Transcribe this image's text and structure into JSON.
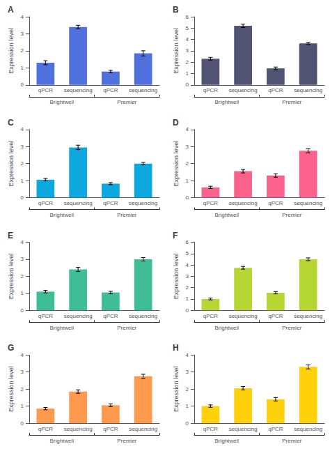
{
  "chart_data": [
    {
      "type": "bar",
      "title": "A",
      "ylabel": "Expression level",
      "categories": [
        "qPCR",
        "sequencing",
        "qPCR",
        "sequencing"
      ],
      "groups": [
        "Brightwell",
        "Brightwell",
        "Premier",
        "Premier"
      ],
      "values": [
        1.3,
        3.4,
        0.78,
        1.85
      ],
      "errors": [
        0.12,
        0.1,
        0.07,
        0.15
      ],
      "ylim": [
        0,
        4
      ],
      "yticks": [
        0,
        1,
        2,
        3,
        4
      ],
      "grid": false
    },
    {
      "type": "bar",
      "title": "B",
      "ylabel": "Expression level",
      "categories": [
        "qPCR",
        "sequencing",
        "qPCR",
        "sequencing"
      ],
      "groups": [
        "Brightwell",
        "Brightwell",
        "Premier",
        "Premier"
      ],
      "values": [
        2.3,
        5.2,
        1.45,
        3.65
      ],
      "errors": [
        0.12,
        0.15,
        0.12,
        0.1
      ],
      "ylim": [
        0,
        6
      ],
      "yticks": [
        0,
        1,
        2,
        3,
        4,
        5,
        6
      ],
      "grid": false
    },
    {
      "type": "bar",
      "title": "C",
      "ylabel": "Expression level",
      "categories": [
        "qPCR",
        "sequencing",
        "qPCR",
        "sequencing"
      ],
      "groups": [
        "Brightwell",
        "Brightwell",
        "Premier",
        "Premier"
      ],
      "values": [
        1.05,
        2.95,
        0.82,
        2.0
      ],
      "errors": [
        0.07,
        0.13,
        0.06,
        0.07
      ],
      "ylim": [
        0,
        4
      ],
      "yticks": [
        0,
        1,
        2,
        3,
        4
      ],
      "grid": false
    },
    {
      "type": "bar",
      "title": "D",
      "ylabel": "Expression level",
      "categories": [
        "qPCR",
        "sequencing",
        "qPCR",
        "sequencing"
      ],
      "groups": [
        "Brightwell",
        "Brightwell",
        "Premier",
        "Premier"
      ],
      "values": [
        0.6,
        1.55,
        1.3,
        2.75
      ],
      "errors": [
        0.07,
        0.1,
        0.1,
        0.12
      ],
      "ylim": [
        0,
        4
      ],
      "yticks": [
        0,
        1,
        2,
        3,
        4
      ],
      "grid": false
    },
    {
      "type": "bar",
      "title": "E",
      "ylabel": "Expression level",
      "categories": [
        "qPCR",
        "sequencing",
        "qPCR",
        "sequencing"
      ],
      "groups": [
        "Brightwell",
        "Brightwell",
        "Premier",
        "Premier"
      ],
      "values": [
        1.1,
        2.4,
        1.05,
        3.0
      ],
      "errors": [
        0.08,
        0.12,
        0.07,
        0.1
      ],
      "ylim": [
        0,
        4
      ],
      "yticks": [
        0,
        1,
        2,
        3,
        4
      ],
      "grid": false
    },
    {
      "type": "bar",
      "title": "F",
      "ylabel": "Expression level",
      "categories": [
        "qPCR",
        "sequencing",
        "qPCR",
        "sequencing"
      ],
      "groups": [
        "Brightwell",
        "Brightwell",
        "Premier",
        "Premier"
      ],
      "values": [
        1.0,
        3.75,
        1.55,
        4.5
      ],
      "errors": [
        0.08,
        0.12,
        0.1,
        0.12
      ],
      "ylim": [
        0,
        6
      ],
      "yticks": [
        0,
        1,
        2,
        3,
        4,
        5,
        6
      ],
      "grid": false
    },
    {
      "type": "bar",
      "title": "G",
      "ylabel": "Expression level",
      "categories": [
        "qPCR",
        "sequencing",
        "qPCR",
        "sequencing"
      ],
      "groups": [
        "Brightwell",
        "Brightwell",
        "Premier",
        "Premier"
      ],
      "values": [
        0.85,
        1.85,
        1.05,
        2.75
      ],
      "errors": [
        0.07,
        0.1,
        0.08,
        0.12
      ],
      "ylim": [
        0,
        4
      ],
      "yticks": [
        0,
        1,
        2,
        3,
        4
      ],
      "grid": false
    },
    {
      "type": "bar",
      "title": "H",
      "ylabel": "Expression level",
      "categories": [
        "qPCR",
        "sequencing",
        "qPCR",
        "sequencing"
      ],
      "groups": [
        "Brightwell",
        "Brightwell",
        "Premier",
        "Premier"
      ],
      "values": [
        1.0,
        2.05,
        1.4,
        3.3
      ],
      "errors": [
        0.07,
        0.1,
        0.1,
        0.12
      ],
      "ylim": [
        0,
        4
      ],
      "yticks": [
        0,
        1,
        2,
        3,
        4
      ],
      "grid": false
    }
  ]
}
